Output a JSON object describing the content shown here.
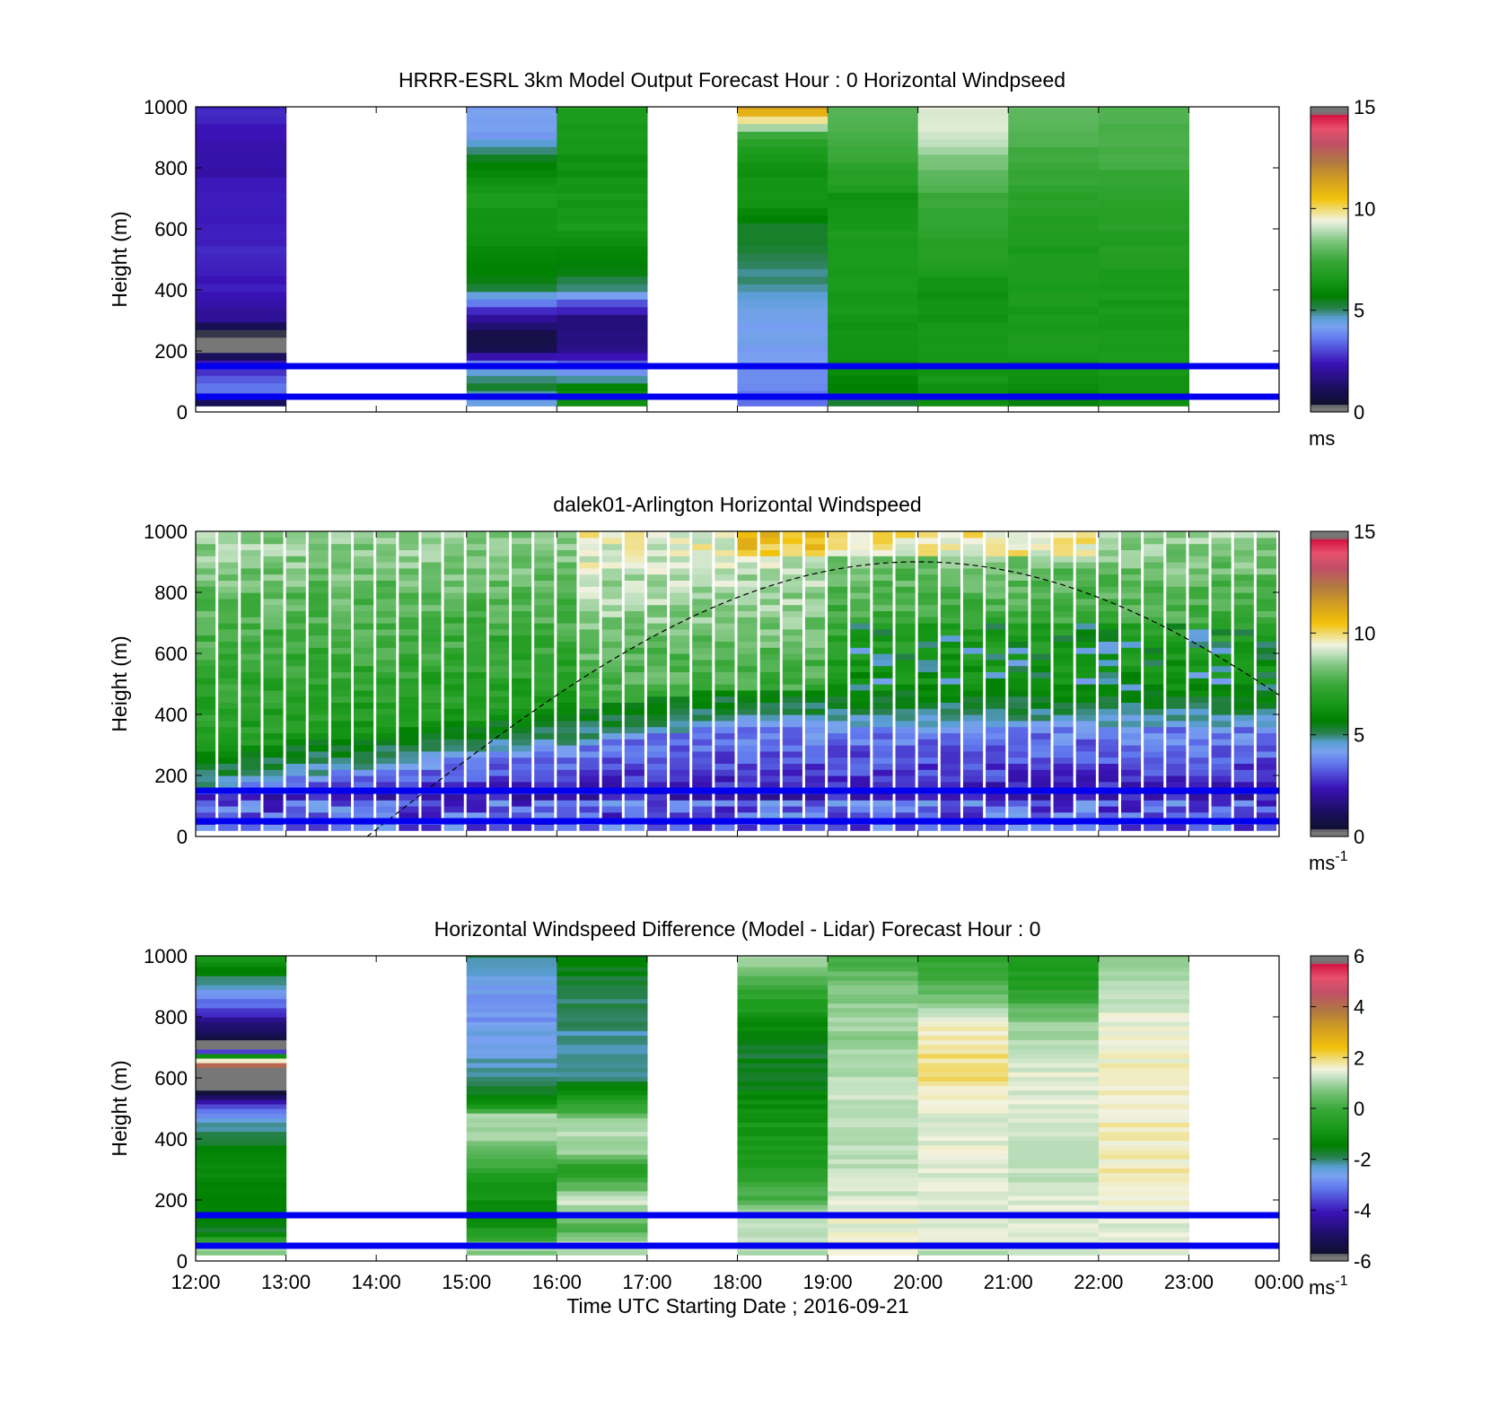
{
  "figure": {
    "xlabel": "Time UTC  Starting Date ; 2016-09-21",
    "x_ticks": [
      "12:00",
      "13:00",
      "14:00",
      "15:00",
      "16:00",
      "17:00",
      "18:00",
      "19:00",
      "20:00",
      "21:00",
      "22:00",
      "23:00",
      "00:00"
    ],
    "y_ticks": [
      "0",
      "200",
      "400",
      "600",
      "800",
      "1000"
    ],
    "ylabel": "Height (m)"
  },
  "chart_data": [
    {
      "type": "heatmap",
      "title": "HRRR-ESRL 3km Model Output   Forecast Hour : 0 Horizontal Windpseed",
      "ylabel": "Height (m)",
      "xlabel": "",
      "xlim": [
        12,
        24
      ],
      "ylim": [
        0,
        1000
      ],
      "colorbar": {
        "range": [
          0,
          15
        ],
        "ticks": [
          "0",
          "5",
          "10",
          "15"
        ],
        "unit": "ms",
        "unit_sup": ""
      },
      "reference_lines_m": [
        150,
        50
      ],
      "columns": [
        {
          "t0": 12,
          "t1": 13,
          "levels": [
            [
              20,
              0.0
            ],
            [
              60,
              0.25
            ],
            [
              100,
              0.22
            ],
            [
              140,
              0.18
            ],
            [
              160,
              0.15
            ],
            [
              180,
              0.08
            ],
            [
              200,
              0.02
            ],
            [
              250,
              0.0
            ],
            [
              300,
              0.12
            ],
            [
              400,
              0.16
            ],
            [
              500,
              0.18
            ],
            [
              600,
              0.17
            ],
            [
              700,
              0.16
            ],
            [
              800,
              0.15
            ],
            [
              900,
              0.16
            ],
            [
              1000,
              0.18
            ]
          ]
        },
        {
          "t0": 15,
          "t1": 16,
          "levels": [
            [
              40,
              0.3
            ],
            [
              80,
              0.36
            ],
            [
              120,
              0.32
            ],
            [
              160,
              0.25
            ],
            [
              200,
              0.06
            ],
            [
              250,
              0.04
            ],
            [
              300,
              0.12
            ],
            [
              350,
              0.22
            ],
            [
              400,
              0.34
            ],
            [
              450,
              0.38
            ],
            [
              600,
              0.42
            ],
            [
              700,
              0.44
            ],
            [
              800,
              0.4
            ],
            [
              900,
              0.28
            ],
            [
              1000,
              0.27
            ]
          ]
        },
        {
          "t0": 16,
          "t1": 17,
          "levels": [
            [
              40,
              0.42
            ],
            [
              80,
              0.4
            ],
            [
              120,
              0.3
            ],
            [
              160,
              0.22
            ],
            [
              200,
              0.12
            ],
            [
              300,
              0.1
            ],
            [
              350,
              0.2
            ],
            [
              400,
              0.32
            ],
            [
              450,
              0.36
            ],
            [
              600,
              0.44
            ],
            [
              800,
              0.42
            ],
            [
              1000,
              0.45
            ]
          ]
        },
        {
          "t0": 18,
          "t1": 19,
          "levels": [
            [
              40,
              0.24
            ],
            [
              120,
              0.26
            ],
            [
              200,
              0.28
            ],
            [
              300,
              0.28
            ],
            [
              350,
              0.3
            ],
            [
              450,
              0.33
            ],
            [
              500,
              0.34
            ],
            [
              600,
              0.36
            ],
            [
              700,
              0.44
            ],
            [
              800,
              0.42
            ],
            [
              900,
              0.48
            ],
            [
              1000,
              0.78
            ]
          ]
        },
        {
          "t0": 19,
          "t1": 20,
          "levels": [
            [
              40,
              0.36
            ],
            [
              120,
              0.4
            ],
            [
              200,
              0.42
            ],
            [
              400,
              0.44
            ],
            [
              600,
              0.44
            ],
            [
              700,
              0.42
            ],
            [
              800,
              0.48
            ],
            [
              900,
              0.52
            ],
            [
              1000,
              0.52
            ]
          ]
        },
        {
          "t0": 20,
          "t1": 21,
          "levels": [
            [
              40,
              0.42
            ],
            [
              200,
              0.44
            ],
            [
              400,
              0.42
            ],
            [
              500,
              0.46
            ],
            [
              600,
              0.48
            ],
            [
              700,
              0.5
            ],
            [
              800,
              0.55
            ],
            [
              900,
              0.6
            ],
            [
              1000,
              0.63
            ]
          ]
        },
        {
          "t0": 21,
          "t1": 22,
          "levels": [
            [
              40,
              0.38
            ],
            [
              120,
              0.42
            ],
            [
              200,
              0.44
            ],
            [
              400,
              0.44
            ],
            [
              600,
              0.45
            ],
            [
              700,
              0.47
            ],
            [
              800,
              0.5
            ],
            [
              900,
              0.52
            ],
            [
              1000,
              0.54
            ]
          ]
        },
        {
          "t0": 22,
          "t1": 23,
          "levels": [
            [
              40,
              0.42
            ],
            [
              200,
              0.44
            ],
            [
              400,
              0.44
            ],
            [
              600,
              0.46
            ],
            [
              700,
              0.48
            ],
            [
              800,
              0.5
            ],
            [
              900,
              0.52
            ],
            [
              1000,
              0.52
            ]
          ]
        }
      ]
    },
    {
      "type": "heatmap",
      "title": "dalek01-Arlington  Horizontal Windspeed",
      "ylabel": "Height (m)",
      "xlabel": "",
      "xlim": [
        12,
        24
      ],
      "ylim": [
        0,
        1000
      ],
      "colorbar": {
        "range": [
          0,
          15
        ],
        "ticks": [
          "0",
          "5",
          "10",
          "15"
        ],
        "unit": "ms",
        "unit_sup": "-1"
      },
      "reference_lines_m": [
        150,
        50
      ],
      "data_end_hour": 23.9,
      "annotation": "dashed curve: rises from ~0 m at 13:55 to ~900 m near 20:00, descending to ~430 m at 00:00",
      "field_description": "lidar observations in ~15-min columns; low winds (1-3) below 300 m, green (4-6) mid levels, lighter greens/yellows (6-9) aloft after 16:00"
    },
    {
      "type": "heatmap",
      "title": "Horizontal Windspeed Difference (Model - Lidar) Forecast Hour : 0",
      "ylabel": "Height (m)",
      "xlabel": "Time UTC  Starting Date ; 2016-09-21",
      "xlim": [
        12,
        24
      ],
      "ylim": [
        0,
        1000
      ],
      "colorbar": {
        "range": [
          -6,
          6
        ],
        "ticks": [
          "-6",
          "-4",
          "-2",
          "0",
          "2",
          "4",
          "6"
        ],
        "unit": "ms",
        "unit_sup": "-1"
      },
      "reference_lines_m": [
        150,
        50
      ],
      "columns": [
        {
          "t0": 12,
          "t1": 13,
          "levels": [
            [
              20,
              0.58
            ],
            [
              40,
              0.58
            ],
            [
              100,
              0.36
            ],
            [
              200,
              0.39
            ],
            [
              300,
              0.4
            ],
            [
              400,
              0.36
            ],
            [
              450,
              0.32
            ],
            [
              500,
              0.22
            ],
            [
              530,
              0.1
            ],
            [
              550,
              0.02
            ],
            [
              630,
              0.0
            ],
            [
              640,
              0.9
            ],
            [
              700,
              0.0
            ],
            [
              760,
              0.08
            ],
            [
              800,
              0.14
            ],
            [
              820,
              0.2
            ],
            [
              850,
              0.24
            ],
            [
              900,
              0.3
            ],
            [
              950,
              0.38
            ],
            [
              1000,
              0.44
            ]
          ]
        },
        {
          "t0": 15,
          "t1": 16,
          "levels": [
            [
              20,
              0.56
            ],
            [
              40,
              0.6
            ],
            [
              80,
              0.46
            ],
            [
              150,
              0.4
            ],
            [
              250,
              0.44
            ],
            [
              300,
              0.48
            ],
            [
              400,
              0.58
            ],
            [
              480,
              0.6
            ],
            [
              500,
              0.46
            ],
            [
              550,
              0.36
            ],
            [
              600,
              0.32
            ],
            [
              700,
              0.3
            ],
            [
              800,
              0.27
            ],
            [
              900,
              0.28
            ],
            [
              950,
              0.32
            ],
            [
              1000,
              0.33
            ]
          ]
        },
        {
          "t0": 16,
          "t1": 17,
          "levels": [
            [
              20,
              0.6
            ],
            [
              60,
              0.62
            ],
            [
              100,
              0.5
            ],
            [
              150,
              0.56
            ],
            [
              200,
              0.62
            ],
            [
              250,
              0.52
            ],
            [
              300,
              0.45
            ],
            [
              350,
              0.58
            ],
            [
              450,
              0.6
            ],
            [
              500,
              0.5
            ],
            [
              600,
              0.34
            ],
            [
              700,
              0.32
            ],
            [
              800,
              0.33
            ],
            [
              900,
              0.35
            ],
            [
              1000,
              0.38
            ]
          ]
        },
        {
          "t0": 18,
          "t1": 19,
          "levels": [
            [
              20,
              0.6
            ],
            [
              150,
              0.6
            ],
            [
              200,
              0.52
            ],
            [
              300,
              0.46
            ],
            [
              400,
              0.44
            ],
            [
              500,
              0.42
            ],
            [
              600,
              0.36
            ],
            [
              700,
              0.36
            ],
            [
              800,
              0.42
            ],
            [
              850,
              0.46
            ],
            [
              900,
              0.5
            ],
            [
              950,
              0.56
            ],
            [
              1000,
              0.6
            ]
          ]
        },
        {
          "t0": 19,
          "t1": 20,
          "levels": [
            [
              20,
              0.65
            ],
            [
              150,
              0.62
            ],
            [
              300,
              0.6
            ],
            [
              500,
              0.6
            ],
            [
              600,
              0.6
            ],
            [
              700,
              0.58
            ],
            [
              800,
              0.58
            ],
            [
              900,
              0.56
            ],
            [
              1000,
              0.5
            ]
          ]
        },
        {
          "t0": 20,
          "t1": 21,
          "levels": [
            [
              20,
              0.6
            ],
            [
              150,
              0.62
            ],
            [
              300,
              0.62
            ],
            [
              500,
              0.62
            ],
            [
              600,
              0.66
            ],
            [
              700,
              0.66
            ],
            [
              800,
              0.62
            ],
            [
              900,
              0.52
            ],
            [
              1000,
              0.48
            ]
          ]
        },
        {
          "t0": 21,
          "t1": 22,
          "levels": [
            [
              20,
              0.62
            ],
            [
              150,
              0.62
            ],
            [
              300,
              0.6
            ],
            [
              500,
              0.62
            ],
            [
              600,
              0.62
            ],
            [
              700,
              0.6
            ],
            [
              800,
              0.56
            ],
            [
              900,
              0.46
            ],
            [
              1000,
              0.44
            ]
          ]
        },
        {
          "t0": 22,
          "t1": 23,
          "levels": [
            [
              20,
              0.63
            ],
            [
              150,
              0.62
            ],
            [
              300,
              0.64
            ],
            [
              500,
              0.64
            ],
            [
              600,
              0.64
            ],
            [
              700,
              0.63
            ],
            [
              800,
              0.62
            ],
            [
              900,
              0.6
            ],
            [
              1000,
              0.58
            ]
          ]
        }
      ]
    }
  ],
  "colors": {
    "reference_line": "#0000ee",
    "colormap_stops": [
      [
        0.0,
        "#777777"
      ],
      [
        0.02,
        "#777777"
      ],
      [
        0.025,
        "#101030"
      ],
      [
        0.08,
        "#1a0f5e"
      ],
      [
        0.16,
        "#3a12b6"
      ],
      [
        0.24,
        "#6077ee"
      ],
      [
        0.28,
        "#7aa2f0"
      ],
      [
        0.31,
        "#5a9ed4"
      ],
      [
        0.34,
        "#2a8050"
      ],
      [
        0.38,
        "#008000"
      ],
      [
        0.44,
        "#1a9a1a"
      ],
      [
        0.5,
        "#3aa83a"
      ],
      [
        0.56,
        "#7cc47c"
      ],
      [
        0.6,
        "#bfe0bf"
      ],
      [
        0.63,
        "#f2f2e0"
      ],
      [
        0.65,
        "#f0e5a0"
      ],
      [
        0.7,
        "#f2c20a"
      ],
      [
        0.76,
        "#d4a020"
      ],
      [
        0.82,
        "#b07a40"
      ],
      [
        0.88,
        "#c05068"
      ],
      [
        0.93,
        "#e8506c"
      ],
      [
        0.975,
        "#d41040"
      ],
      [
        0.98,
        "#777777"
      ],
      [
        1.0,
        "#777777"
      ]
    ]
  }
}
